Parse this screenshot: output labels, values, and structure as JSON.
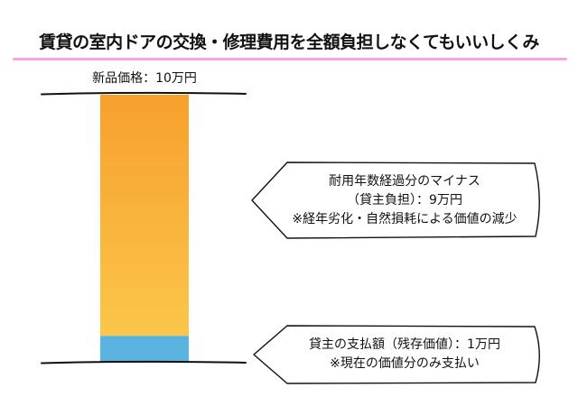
{
  "title": "賃貸の室内ドアの交換・修理費用を全額負担しなくてもいいしくみ",
  "new_price_label": "新品価格：10万円",
  "colors": {
    "accent_underline": "#f4a6d8",
    "landlord_portion": "#f7a532",
    "tenant_portion": "#5ab4e0",
    "outline": "#111111"
  },
  "chart_data": {
    "type": "bar",
    "stacked": true,
    "total": 10,
    "unit": "万円",
    "segments": [
      {
        "name": "耐用年数経過分のマイナス（貸主負担）",
        "value": 9
      },
      {
        "name": "貸主の支払額（残存価値）",
        "value": 1
      }
    ]
  },
  "callouts": {
    "depreciation": {
      "line1": "耐用年数経過分のマイナス",
      "line2": "（貸主負担）：9万円",
      "line3": "※経年劣化・自然損耗による価値の減少"
    },
    "residual": {
      "line1": "貸主の支払額（残存価値）：1万円",
      "line2": "※現在の価値分のみ支払い"
    }
  }
}
